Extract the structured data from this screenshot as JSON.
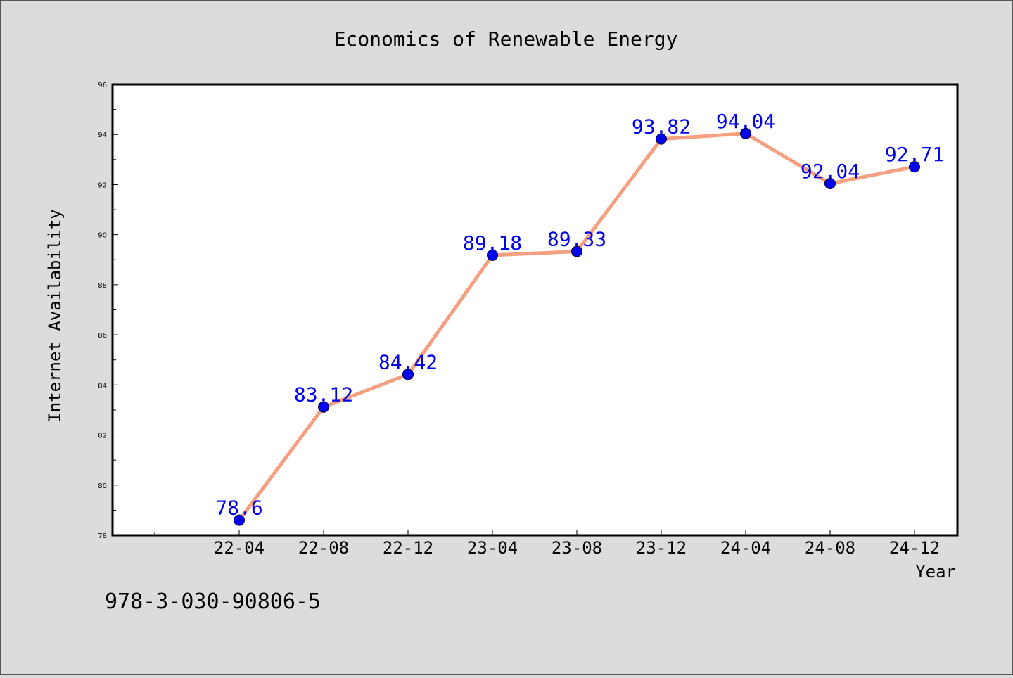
{
  "chart_data": {
    "type": "line",
    "title": "Economics of Renewable Energy",
    "xlabel": "Year",
    "ylabel": "Internet Availability",
    "categories": [
      "22-04",
      "22-08",
      "22-12",
      "23-04",
      "23-08",
      "23-12",
      "24-04",
      "24-08",
      "24-12"
    ],
    "series": [
      {
        "values": [
          78.6,
          83.12,
          84.42,
          89.18,
          89.33,
          93.82,
          94.04,
          92.04,
          92.71
        ],
        "labels": [
          "78.6",
          "83.12",
          "84.42",
          "89.18",
          "89.33",
          "93.82",
          "94.04",
          "92.04",
          "92.71"
        ]
      }
    ],
    "ylim": [
      78,
      96
    ],
    "yticks": [
      "78",
      "80",
      "82",
      "84",
      "86",
      "88",
      "90",
      "92",
      "94",
      "96"
    ],
    "grid": false,
    "legend": "none",
    "colors": {
      "line": "#f4a080",
      "marker": "#0000ee",
      "data_label": "#0000ee",
      "plot_background": "#ffffff",
      "figure_background": "#dcdcdc"
    }
  },
  "annotation": "978-3-030-90806-5"
}
